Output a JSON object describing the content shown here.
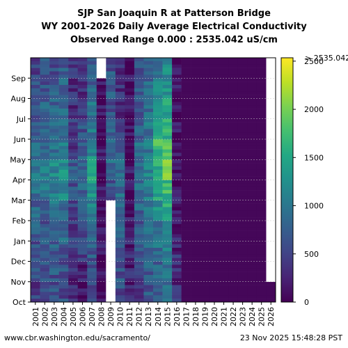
{
  "title_lines": [
    "SJP San Joaquin R at Patterson Bridge",
    "WY 2001-2026 Daily Average Electrical Conductivity",
    "Observed Range 0.000 : 2535.042 uS/cm"
  ],
  "footer": {
    "url": "www.cbr.washington.edu/sacramento/",
    "timestamp": "23 Nov 2025 15:48:28 PST"
  },
  "chart_data": {
    "type": "heatmap",
    "title": "SJP San Joaquin R at Patterson Bridge WY 2001-2026 Daily Average Electrical Conductivity",
    "subtitle": "Observed Range 0.000 : 2535.042 uS/cm",
    "x_categories": [
      "2001",
      "2002",
      "2003",
      "2004",
      "2005",
      "2006",
      "2007",
      "2008",
      "2009",
      "2010",
      "2011",
      "2012",
      "2013",
      "2014",
      "2015",
      "2016",
      "2017",
      "2018",
      "2019",
      "2020",
      "2021",
      "2022",
      "2023",
      "2024",
      "2025",
      "2026"
    ],
    "y_categories": [
      "Oct",
      "Nov",
      "Dec",
      "Jan",
      "Feb",
      "Mar",
      "Apr",
      "May",
      "Jun",
      "Jul",
      "Aug",
      "Sep"
    ],
    "colorbar": {
      "min": 0,
      "max": 2535.042,
      "ticks": [
        0,
        500,
        1000,
        1500,
        2000,
        2500
      ],
      "top_label": "> 2535.042",
      "colormap": "viridis"
    },
    "grid": true,
    "missing_color": "#ffffff",
    "monthly_values": [
      [
        480,
        560,
        650,
        700,
        800,
        900,
        950,
        800,
        750,
        650,
        600,
        520
      ],
      [
        520,
        620,
        700,
        600,
        800,
        950,
        1050,
        900,
        850,
        750,
        680,
        620
      ],
      [
        600,
        650,
        750,
        800,
        900,
        1050,
        1150,
        950,
        900,
        800,
        720,
        650
      ],
      [
        550,
        600,
        700,
        850,
        950,
        1100,
        1200,
        1000,
        950,
        850,
        750,
        700
      ],
      [
        300,
        350,
        400,
        450,
        500,
        600,
        650,
        450,
        400,
        350,
        300,
        350
      ],
      [
        200,
        250,
        450,
        550,
        700,
        800,
        900,
        700,
        600,
        450,
        350,
        300
      ],
      [
        600,
        650,
        700,
        900,
        1100,
        1300,
        1500,
        1200,
        1000,
        900,
        800,
        700
      ],
      [
        150,
        120,
        120,
        120,
        120,
        150,
        150,
        150,
        150,
        150,
        150,
        null
      ],
      [
        null,
        null,
        null,
        null,
        null,
        650,
        900,
        800,
        700,
        650,
        700,
        650
      ],
      [
        600,
        650,
        700,
        750,
        800,
        850,
        900,
        650,
        450,
        350,
        300,
        400
      ],
      [
        250,
        250,
        200,
        150,
        150,
        150,
        150,
        120,
        100,
        100,
        100,
        100
      ],
      [
        500,
        550,
        600,
        700,
        800,
        900,
        1000,
        900,
        800,
        700,
        650,
        600
      ],
      [
        650,
        700,
        800,
        850,
        950,
        1050,
        1150,
        1000,
        950,
        850,
        800,
        750
      ],
      [
        700,
        800,
        900,
        1000,
        1200,
        1400,
        1600,
        1700,
        1600,
        1300,
        1100,
        1000
      ],
      [
        900,
        1000,
        1100,
        1300,
        1500,
        1700,
        1900,
        1800,
        1600,
        1400,
        1300,
        1200
      ],
      [
        300,
        300,
        300,
        250,
        200,
        120,
        100,
        100,
        100,
        100,
        100,
        100
      ],
      [
        40,
        40,
        40,
        40,
        40,
        40,
        40,
        40,
        40,
        40,
        40,
        40
      ],
      [
        40,
        40,
        40,
        40,
        40,
        40,
        40,
        40,
        40,
        40,
        40,
        40
      ],
      [
        40,
        40,
        40,
        40,
        40,
        40,
        40,
        40,
        40,
        40,
        40,
        40
      ],
      [
        40,
        40,
        40,
        40,
        40,
        40,
        40,
        40,
        40,
        40,
        40,
        40
      ],
      [
        40,
        40,
        40,
        40,
        40,
        40,
        40,
        40,
        40,
        40,
        40,
        40
      ],
      [
        40,
        40,
        40,
        40,
        40,
        40,
        40,
        40,
        40,
        40,
        40,
        40
      ],
      [
        40,
        40,
        40,
        40,
        40,
        40,
        40,
        40,
        40,
        40,
        40,
        40
      ],
      [
        40,
        40,
        40,
        40,
        40,
        40,
        40,
        40,
        40,
        40,
        40,
        40
      ],
      [
        40,
        40,
        40,
        40,
        40,
        40,
        40,
        40,
        40,
        40,
        40,
        40
      ],
      [
        40,
        null,
        null,
        null,
        null,
        null,
        null,
        null,
        null,
        null,
        null,
        null
      ]
    ]
  }
}
